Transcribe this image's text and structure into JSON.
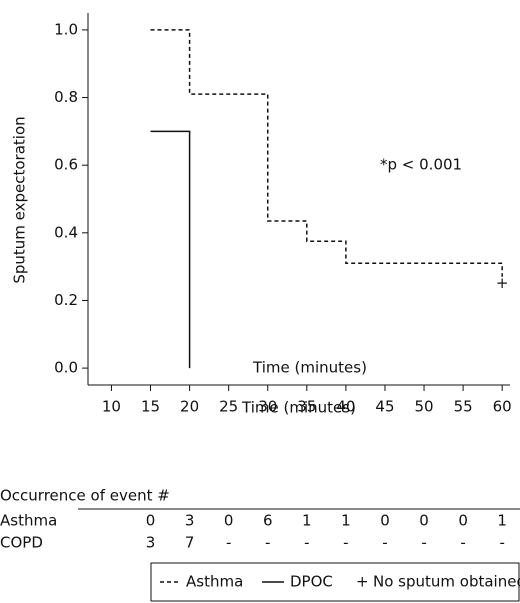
{
  "chart_data": {
    "type": "step",
    "y_label": "Sputum expectoration",
    "x_label": "Time (minutes)",
    "inner_label": "Time (minutes)",
    "annotation": "*p < 0.001",
    "xlim": [
      7,
      61
    ],
    "ylim": [
      -0.05,
      1.05
    ],
    "xticks": [
      10,
      15,
      20,
      25,
      30,
      35,
      40,
      45,
      50,
      55,
      60
    ],
    "yticks": [
      {
        "value": 0,
        "label": "0.0"
      },
      0.2,
      0.4,
      0.6,
      0.8,
      {
        "value": 1,
        "label": "1.0"
      }
    ],
    "series": [
      {
        "name": "Asthma",
        "color": "#111111",
        "dashed": true,
        "x": [
          15,
          20,
          20,
          30,
          30,
          35,
          35,
          40,
          40,
          60,
          60
        ],
        "values": [
          1.0,
          1.0,
          0.81,
          0.81,
          0.435,
          0.435,
          0.375,
          0.375,
          0.31,
          0.31,
          0.27
        ]
      },
      {
        "name": "DPOC",
        "color": "#111111",
        "dashed": false,
        "x": [
          15,
          20,
          20
        ],
        "values": [
          0.7,
          0.7,
          0.0
        ]
      }
    ],
    "censor": {
      "symbol": "+",
      "label": "No sputum obtained",
      "x": 60,
      "y": 0.25
    },
    "risk_table": {
      "title": "Occurrence of event #",
      "rows": [
        {
          "label": "Asthma",
          "values": [
            0,
            3,
            0,
            6,
            1,
            1,
            0,
            0,
            0,
            1
          ]
        },
        {
          "label": "COPD",
          "values": [
            3,
            7,
            "-",
            "-",
            "-",
            "-",
            "-",
            "-",
            "-",
            "-"
          ]
        }
      ]
    }
  }
}
